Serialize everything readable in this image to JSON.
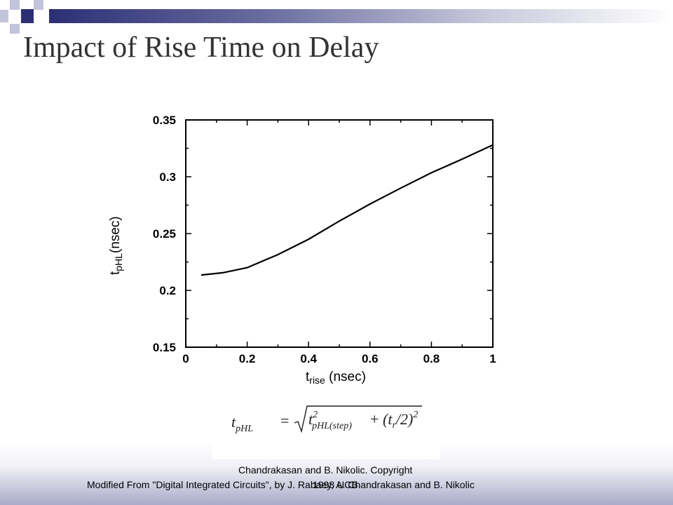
{
  "slide": {
    "title": "Impact of Rise Time on Delay"
  },
  "formula": {
    "lhs_var": "t",
    "lhs_sub": "pHL",
    "equals": "=",
    "term1_var": "t",
    "term1_sup": "2",
    "term1_sub": "pHL(step)",
    "plus": "+",
    "term2": "(t",
    "term2_sub": "r",
    "term2_rest": "/2)",
    "term2_sup": "2"
  },
  "footer": {
    "line1": "Chandrakasan and B. Nikolic. Copyright",
    "line2": "Modified From \"Digital Integrated Circuits\", by J. Rabaey, A. Chandrakasan and B. Nikolic",
    "overlap": "1998 UCB"
  },
  "chart_data": {
    "type": "line",
    "x": [
      0.05,
      0.12,
      0.2,
      0.3,
      0.4,
      0.5,
      0.6,
      0.7,
      0.8,
      0.9,
      1.0
    ],
    "series": [
      {
        "values": [
          0.2135,
          0.2155,
          0.22,
          0.2315,
          0.245,
          0.261,
          0.276,
          0.29,
          0.3035,
          0.3155,
          0.328
        ]
      }
    ],
    "xlim": [
      0,
      1
    ],
    "ylim": [
      0.15,
      0.35
    ],
    "x_ticks": [
      "0",
      "0.2",
      "0.4",
      "0.6",
      "0.8",
      "1"
    ],
    "y_ticks": [
      "0.15",
      "0.2",
      "0.25",
      "0.3",
      "0.35"
    ],
    "xlabel_main": "t",
    "xlabel_sub": "rise",
    "xlabel_rest": " (nsec)",
    "ylabel_main": "t",
    "ylabel_sub": "pHL",
    "ylabel_rest": "(nsec)",
    "grid": false
  }
}
